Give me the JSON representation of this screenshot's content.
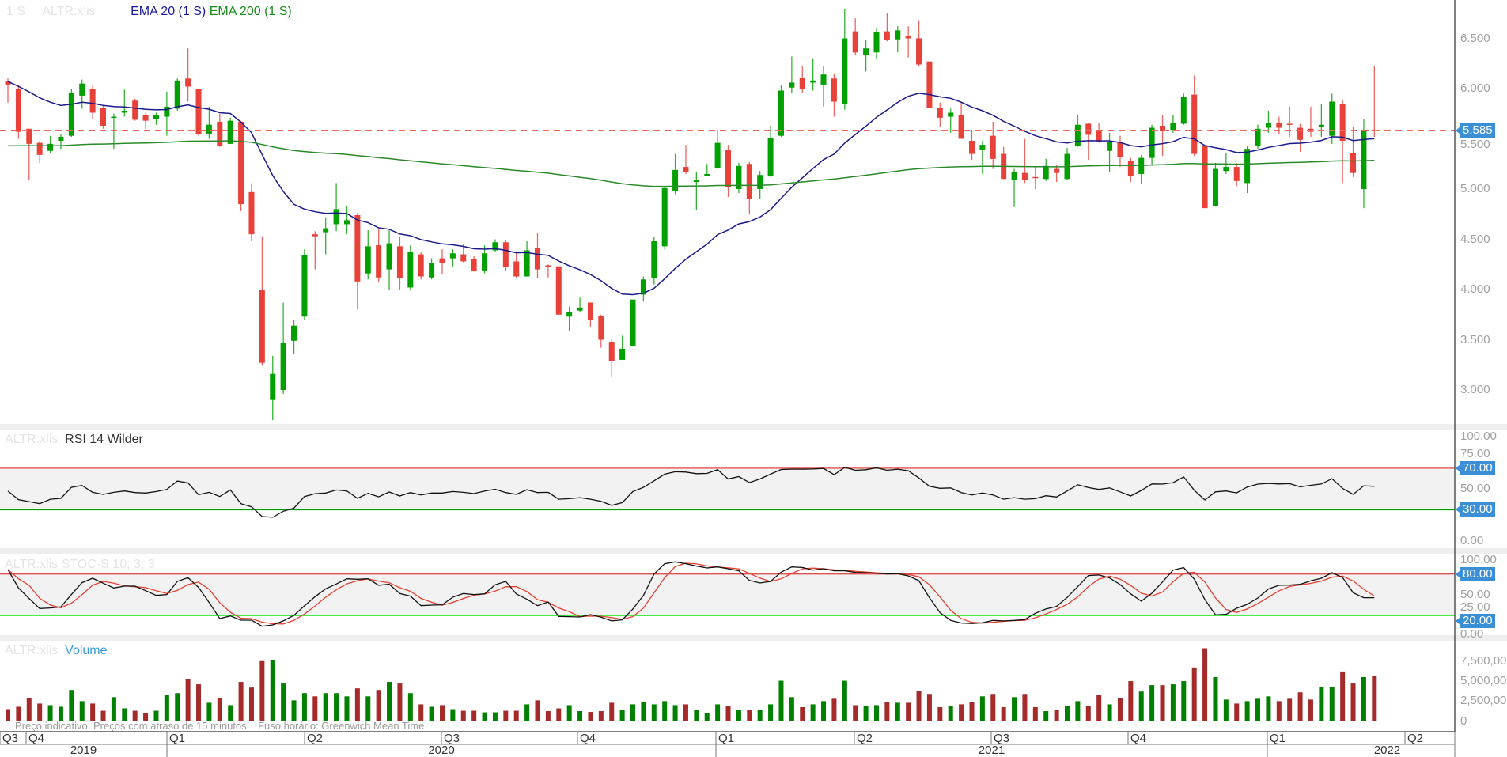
{
  "legend": {
    "interval": "1 S",
    "symbol": "ALTR:xlis",
    "ema20": "EMA 20  (1 S)",
    "ema200": "EMA 200  (1 S)",
    "rsi_symbol": "ALTR:xlis",
    "rsi": "RSI 14 Wilder",
    "stoch": "ALTR:xlis  STOC-S 10; 3; 3",
    "vol_symbol": "ALTR:xlis",
    "volume": "Volume"
  },
  "footnote": "Preço indicativo. Preços com atraso de 15 minutos    Fuso horário: Greenwich Mean Time",
  "colors": {
    "up": "#00a000",
    "down": "#e8413a",
    "vol_up": "#008000",
    "vol_down": "#a52a2a",
    "ema20": "#1a1a8c",
    "ema200": "#2a8a2a",
    "tag": "#3a8fd6"
  },
  "time_axis": {
    "quarters": [
      "Q3",
      "Q4",
      "Q1",
      "Q2",
      "Q3",
      "Q4",
      "Q1",
      "Q2",
      "Q3",
      "Q4",
      "Q1",
      "Q2"
    ],
    "years": [
      "2019",
      "2020",
      "2021",
      "2022"
    ]
  },
  "chart_data": [
    {
      "type": "candlestick",
      "title": "ALTR:xlis 1 S",
      "ylim": [
        2.65,
        6.9
      ],
      "y_ticks": [
        "6.500",
        "6.000",
        "5.500",
        "5.000",
        "4.500",
        "4.000",
        "3.500",
        "3.000"
      ],
      "last_price": "5.585",
      "ema": [
        {
          "name": "EMA 20",
          "period": 20,
          "seed": 6.07
        },
        {
          "name": "EMA 200",
          "period": 200,
          "seed": 5.43
        }
      ],
      "ohlc": [
        [
          6.07,
          6.1,
          5.86,
          6.04
        ],
        [
          6.0,
          6.03,
          5.5,
          5.57
        ],
        [
          5.6,
          5.6,
          5.09,
          5.45
        ],
        [
          5.46,
          5.48,
          5.26,
          5.34
        ],
        [
          5.38,
          5.53,
          5.36,
          5.45
        ],
        [
          5.48,
          5.55,
          5.4,
          5.52
        ],
        [
          5.53,
          6.0,
          5.52,
          5.96
        ],
        [
          5.93,
          6.09,
          5.8,
          6.05
        ],
        [
          6.0,
          6.03,
          5.7,
          5.76
        ],
        [
          5.81,
          5.83,
          5.6,
          5.63
        ],
        [
          5.71,
          5.75,
          5.4,
          5.72
        ],
        [
          5.76,
          5.99,
          5.72,
          5.78
        ],
        [
          5.88,
          5.9,
          5.68,
          5.69
        ],
        [
          5.74,
          5.76,
          5.6,
          5.68
        ],
        [
          5.7,
          5.76,
          5.64,
          5.74
        ],
        [
          5.72,
          5.97,
          5.53,
          5.82
        ],
        [
          5.8,
          6.1,
          5.78,
          6.08
        ],
        [
          6.1,
          6.4,
          5.87,
          6.02
        ],
        [
          6.0,
          6.0,
          5.53,
          5.55
        ],
        [
          5.55,
          5.82,
          5.5,
          5.64
        ],
        [
          5.67,
          5.75,
          5.42,
          5.43
        ],
        [
          5.45,
          5.71,
          5.45,
          5.68
        ],
        [
          5.67,
          5.68,
          4.78,
          4.85
        ],
        [
          4.97,
          5.06,
          4.48,
          4.55
        ],
        [
          4.0,
          4.53,
          3.24,
          3.27
        ],
        [
          2.9,
          3.34,
          2.7,
          3.16
        ],
        [
          3.0,
          3.87,
          2.96,
          3.47
        ],
        [
          3.49,
          3.7,
          3.36,
          3.64
        ],
        [
          3.73,
          4.4,
          3.7,
          4.34
        ],
        [
          4.55,
          4.58,
          4.2,
          4.53
        ],
        [
          4.57,
          4.72,
          4.35,
          4.61
        ],
        [
          4.65,
          5.06,
          4.58,
          4.8
        ],
        [
          4.65,
          4.83,
          4.55,
          4.69
        ],
        [
          4.74,
          4.76,
          3.8,
          4.08
        ],
        [
          4.16,
          4.59,
          4.1,
          4.43
        ],
        [
          4.44,
          4.6,
          4.08,
          4.12
        ],
        [
          4.2,
          4.59,
          4.0,
          4.46
        ],
        [
          4.43,
          4.53,
          4.0,
          4.11
        ],
        [
          4.02,
          4.44,
          4.0,
          4.37
        ],
        [
          4.35,
          4.37,
          4.1,
          4.13
        ],
        [
          4.12,
          4.31,
          4.1,
          4.26
        ],
        [
          4.31,
          4.4,
          4.15,
          4.26
        ],
        [
          4.31,
          4.4,
          4.22,
          4.36
        ],
        [
          4.35,
          4.45,
          4.27,
          4.28
        ],
        [
          4.3,
          4.33,
          4.18,
          4.18
        ],
        [
          4.19,
          4.44,
          4.16,
          4.36
        ],
        [
          4.39,
          4.5,
          4.37,
          4.47
        ],
        [
          4.47,
          4.49,
          4.18,
          4.22
        ],
        [
          4.28,
          4.38,
          4.11,
          4.13
        ],
        [
          4.13,
          4.48,
          4.13,
          4.39
        ],
        [
          4.41,
          4.56,
          4.11,
          4.2
        ],
        [
          4.24,
          4.25,
          4.12,
          4.23
        ],
        [
          4.23,
          4.23,
          3.75,
          3.75
        ],
        [
          3.73,
          3.83,
          3.59,
          3.78
        ],
        [
          3.79,
          3.92,
          3.77,
          3.82
        ],
        [
          3.87,
          3.87,
          3.63,
          3.7
        ],
        [
          3.74,
          3.75,
          3.42,
          3.5
        ],
        [
          3.48,
          3.51,
          3.13,
          3.29
        ],
        [
          3.3,
          3.54,
          3.3,
          3.41
        ],
        [
          3.44,
          3.9,
          3.44,
          3.9
        ],
        [
          3.95,
          4.13,
          3.88,
          4.1
        ],
        [
          4.11,
          4.52,
          4.05,
          4.48
        ],
        [
          4.43,
          5.02,
          4.4,
          5.01
        ],
        [
          4.98,
          5.35,
          4.95,
          5.19
        ],
        [
          5.22,
          5.44,
          5.15,
          5.17
        ],
        [
          5.07,
          5.17,
          4.79,
          5.09
        ],
        [
          5.13,
          5.25,
          5.13,
          5.15
        ],
        [
          5.21,
          5.59,
          5.2,
          5.46
        ],
        [
          5.39,
          5.44,
          4.92,
          5.02
        ],
        [
          5.0,
          5.26,
          4.96,
          5.23
        ],
        [
          5.25,
          5.27,
          4.75,
          4.9
        ],
        [
          5.0,
          5.18,
          4.9,
          5.14
        ],
        [
          5.13,
          5.63,
          5.12,
          5.51
        ],
        [
          5.53,
          6.03,
          5.52,
          5.98
        ],
        [
          6.01,
          6.32,
          5.96,
          6.06
        ],
        [
          6.11,
          6.22,
          5.96,
          6.0
        ],
        [
          6.06,
          6.3,
          5.98,
          6.08
        ],
        [
          6.04,
          6.22,
          5.82,
          6.14
        ],
        [
          6.1,
          6.15,
          5.72,
          5.87
        ],
        [
          5.85,
          6.79,
          5.79,
          6.5
        ],
        [
          6.57,
          6.7,
          6.33,
          6.36
        ],
        [
          6.33,
          6.48,
          6.17,
          6.4
        ],
        [
          6.36,
          6.6,
          6.3,
          6.56
        ],
        [
          6.57,
          6.75,
          6.47,
          6.48
        ],
        [
          6.49,
          6.62,
          6.36,
          6.58
        ],
        [
          6.52,
          6.62,
          6.31,
          6.5
        ],
        [
          6.5,
          6.68,
          6.22,
          6.24
        ],
        [
          6.27,
          6.27,
          5.81,
          5.81
        ],
        [
          5.81,
          5.86,
          5.62,
          5.71
        ],
        [
          5.72,
          5.8,
          5.56,
          5.76
        ],
        [
          5.74,
          5.87,
          5.5,
          5.5
        ],
        [
          5.48,
          5.59,
          5.29,
          5.35
        ],
        [
          5.39,
          5.48,
          5.15,
          5.44
        ],
        [
          5.53,
          5.67,
          5.2,
          5.3
        ],
        [
          5.35,
          5.42,
          5.1,
          5.1
        ],
        [
          5.09,
          5.2,
          4.82,
          5.17
        ],
        [
          5.16,
          5.5,
          5.06,
          5.09
        ],
        [
          5.12,
          5.22,
          5.0,
          5.11
        ],
        [
          5.1,
          5.3,
          5.08,
          5.23
        ],
        [
          5.2,
          5.24,
          5.07,
          5.16
        ],
        [
          5.1,
          5.41,
          5.09,
          5.35
        ],
        [
          5.43,
          5.74,
          5.42,
          5.64
        ],
        [
          5.65,
          5.66,
          5.29,
          5.54
        ],
        [
          5.58,
          5.66,
          5.46,
          5.47
        ],
        [
          5.38,
          5.56,
          5.17,
          5.47
        ],
        [
          5.46,
          5.53,
          5.22,
          5.32
        ],
        [
          5.28,
          5.31,
          5.07,
          5.13
        ],
        [
          5.15,
          5.34,
          5.05,
          5.31
        ],
        [
          5.31,
          5.64,
          5.24,
          5.61
        ],
        [
          5.63,
          5.74,
          5.33,
          5.58
        ],
        [
          5.59,
          5.74,
          5.56,
          5.66
        ],
        [
          5.65,
          5.95,
          5.64,
          5.92
        ],
        [
          5.94,
          6.13,
          5.33,
          5.35
        ],
        [
          5.43,
          5.43,
          4.81,
          4.81
        ],
        [
          4.83,
          5.26,
          4.83,
          5.2
        ],
        [
          5.18,
          5.36,
          5.15,
          5.22
        ],
        [
          5.22,
          5.26,
          5.03,
          5.08
        ],
        [
          5.06,
          5.43,
          4.96,
          5.4
        ],
        [
          5.43,
          5.64,
          5.4,
          5.6
        ],
        [
          5.61,
          5.78,
          5.56,
          5.66
        ],
        [
          5.66,
          5.72,
          5.55,
          5.61
        ],
        [
          5.65,
          5.82,
          5.52,
          5.64
        ],
        [
          5.61,
          5.65,
          5.37,
          5.49
        ],
        [
          5.6,
          5.82,
          5.52,
          5.57
        ],
        [
          5.62,
          5.85,
          5.52,
          5.64
        ],
        [
          5.53,
          5.95,
          5.45,
          5.87
        ],
        [
          5.85,
          5.89,
          5.06,
          5.48
        ],
        [
          5.36,
          5.62,
          5.12,
          5.16
        ],
        [
          5.0,
          5.7,
          4.81,
          5.59
        ],
        [
          5.59,
          6.23,
          5.52,
          5.585
        ]
      ]
    },
    {
      "type": "line",
      "title": "RSI 14 Wilder",
      "ylim": [
        0,
        100
      ],
      "y_ticks": [
        "100.00",
        "75.00",
        "50.00",
        "0.00"
      ],
      "levels": [
        {
          "value": 70,
          "label": "70.00"
        },
        {
          "value": 30,
          "label": "30.00"
        }
      ],
      "values": [
        48,
        39.6,
        37.8,
        35.8,
        40.1,
        40.9,
        51.5,
        53.3,
        46.7,
        44.7,
        46.7,
        48,
        46.5,
        46,
        47.5,
        49.5,
        57.6,
        55.8,
        44.4,
        46.7,
        42.7,
        49,
        35.8,
        32.8,
        23.4,
        22.7,
        28.5,
        31.5,
        42.7,
        45.4,
        46,
        49,
        48,
        40.9,
        45.7,
        42.4,
        47,
        43.2,
        46.5,
        44.2,
        46,
        46,
        47.5,
        46.7,
        45.5,
        48,
        49.7,
        46.5,
        44.7,
        49.2,
        46.5,
        46.7,
        40.1,
        40.6,
        41.6,
        40.1,
        38.1,
        34.1,
        36.8,
        47.5,
        51.5,
        57.8,
        64.2,
        66.5,
        66.2,
        64.7,
        64.9,
        68.5,
        59.6,
        61.9,
        56.1,
        59.6,
        64.2,
        68.7,
        69,
        69,
        69.2,
        69.7,
        63.7,
        70.8,
        68,
        68.5,
        70.3,
        68,
        69,
        67.5,
        60.6,
        52.5,
        50.6,
        51,
        46.5,
        44.2,
        46,
        44.2,
        40.1,
        41.6,
        40.1,
        40.6,
        43.4,
        42.2,
        48,
        54,
        51.3,
        49.5,
        51,
        47.2,
        43.2,
        48.5,
        54.8,
        54.6,
        56.1,
        61.6,
        48.7,
        39.4,
        47.2,
        48,
        46.2,
        51.8,
        54.6,
        55.3,
        54.8,
        55.1,
        52,
        53.5,
        54.8,
        59.9,
        50.5,
        44.7,
        53,
        52.5
      ]
    },
    {
      "type": "line",
      "title": "STOC-S 10; 3; 3",
      "ylim": [
        0,
        100
      ],
      "y_ticks": [
        "100.00",
        "50.00",
        "25.00",
        "0.00"
      ],
      "levels": [
        {
          "value": 80,
          "label": "80.00"
        },
        {
          "value": 20,
          "label": "20.00"
        }
      ],
      "d_period": 3,
      "k": [
        86.5,
        59.7,
        44.5,
        29.9,
        30.7,
        32.2,
        50.2,
        67.4,
        73.9,
        66.6,
        59.7,
        62.4,
        62.4,
        55.9,
        49,
        50.2,
        69.3,
        74.6,
        60.5,
        38.7,
        15.4,
        19.2,
        13.1,
        13.1,
        4.3,
        6.2,
        12,
        20,
        33.8,
        47.1,
        58.6,
        65.5,
        73.1,
        72.4,
        73.1,
        63.6,
        65.1,
        51.7,
        47.9,
        34.1,
        34.9,
        35.3,
        46.4,
        51.7,
        50.2,
        51.3,
        64.3,
        69.3,
        51,
        43.3,
        34.1,
        39.5,
        18.5,
        18.1,
        17.7,
        21.1,
        17.3,
        12,
        13.5,
        29.2,
        49,
        80,
        94.9,
        97.6,
        94.9,
        91.5,
        88.8,
        90.3,
        87.6,
        84.6,
        70.8,
        67,
        69.3,
        82.7,
        90.3,
        89.5,
        85.7,
        87.6,
        84.6,
        84.6,
        82.3,
        81.9,
        81.1,
        80,
        80.4,
        77.3,
        70.4,
        45.6,
        24,
        12.7,
        8.9,
        8.2,
        9.3,
        12.7,
        12,
        12.7,
        13.9,
        23.1,
        29.2,
        33,
        46,
        61.7,
        77.7,
        78.5,
        74.3,
        64.7,
        51.3,
        40.6,
        52.1,
        68.5,
        85.7,
        89.2,
        72.7,
        42.9,
        20.8,
        21.5,
        30.3,
        36,
        45.2,
        58.2,
        63.6,
        63.9,
        65.1,
        70.1,
        73.9,
        81.9,
        75,
        52.9,
        45.6,
        45.6
      ]
    },
    {
      "type": "bar",
      "title": "Volume",
      "ylim": [
        0,
        9500000
      ],
      "y_ticks": [
        "7,500,000",
        "5,000,000",
        "2,500,000",
        "0"
      ],
      "unit": "millions",
      "values": [
        1.5,
        1.8,
        2.9,
        2.2,
        2.0,
        1.8,
        3.9,
        2.5,
        2.2,
        1.3,
        3.0,
        1.6,
        1.3,
        1.0,
        1.3,
        3.3,
        3.5,
        5.3,
        4.6,
        2.3,
        2.9,
        2.0,
        4.9,
        4.2,
        7.5,
        7.6,
        4.7,
        2.6,
        3.5,
        3.1,
        3.5,
        3.5,
        3.1,
        4.1,
        3.1,
        3.9,
        4.9,
        4.7,
        3.5,
        2.1,
        1.8,
        2.0,
        1.5,
        1.3,
        1.3,
        1.1,
        1.1,
        1.3,
        1.3,
        2.1,
        2.6,
        1.25,
        1.6,
        2.0,
        1.25,
        1.15,
        1.25,
        2.3,
        1.4,
        2.1,
        2.4,
        2.1,
        2.5,
        2.0,
        2.1,
        1.4,
        1.0,
        2.1,
        1.9,
        1.4,
        1.4,
        1.4,
        2.1,
        5.05,
        3.0,
        1.75,
        2.1,
        2.5,
        2.8,
        5.05,
        2.0,
        1.9,
        2.0,
        2.4,
        2.3,
        2.3,
        3.8,
        3.4,
        1.75,
        1.9,
        2.1,
        2.4,
        3.1,
        3.4,
        1.75,
        3.0,
        3.4,
        1.75,
        1.25,
        1.4,
        1.9,
        2.5,
        1.9,
        3.3,
        2.1,
        2.9,
        5.0,
        3.7,
        4.5,
        4.5,
        4.6,
        5.0,
        6.7,
        9.1,
        5.5,
        2.7,
        2.2,
        2.5,
        2.8,
        3.1,
        2.5,
        2.8,
        3.6,
        2.7,
        4.3,
        4.3,
        6.2,
        4.7,
        5.5,
        5.7
      ]
    }
  ]
}
